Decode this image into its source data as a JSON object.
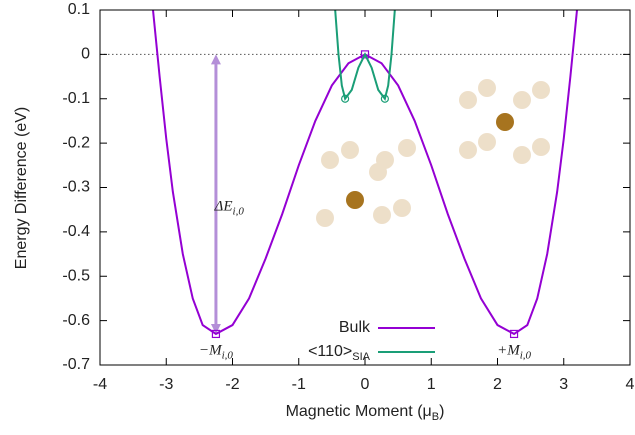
{
  "chart_data": {
    "type": "line",
    "ylabel": "Energy Difference (eV)",
    "xlabel_parts": [
      "Magnetic Moment (μ",
      "B",
      ")"
    ],
    "xlim": [
      -4,
      4
    ],
    "xticks": [
      -4,
      -3,
      -2,
      -1,
      0,
      1,
      2,
      3,
      4
    ],
    "ylim": [
      -0.7,
      0.1
    ],
    "yticks": [
      0.1,
      0,
      -0.1,
      -0.2,
      -0.3,
      -0.4,
      -0.5,
      -0.6,
      -0.7
    ],
    "hline": 0,
    "series": [
      {
        "name": "Bulk",
        "color": "#9400d3",
        "x": [
          -3.2,
          -3.1,
          -3.0,
          -2.9,
          -2.75,
          -2.6,
          -2.45,
          -2.25,
          -2.0,
          -1.75,
          -1.5,
          -1.25,
          -1.0,
          -0.75,
          -0.5,
          -0.25,
          0,
          0.25,
          0.5,
          0.75,
          1.0,
          1.25,
          1.5,
          1.75,
          2.0,
          2.25,
          2.45,
          2.6,
          2.75,
          2.9,
          3.0,
          3.1,
          3.2
        ],
        "values": [
          0.1,
          -0.05,
          -0.19,
          -0.31,
          -0.45,
          -0.55,
          -0.61,
          -0.63,
          -0.61,
          -0.55,
          -0.46,
          -0.36,
          -0.25,
          -0.15,
          -0.07,
          -0.02,
          0,
          -0.02,
          -0.07,
          -0.15,
          -0.25,
          -0.36,
          -0.46,
          -0.55,
          -0.61,
          -0.63,
          -0.61,
          -0.55,
          -0.45,
          -0.31,
          -0.19,
          -0.05,
          0.1
        ],
        "points_x": [
          -2.25,
          0,
          2.25
        ],
        "points_y": [
          -0.63,
          0,
          -0.63
        ]
      },
      {
        "name": "<110>",
        "name_sub": "SIA",
        "color": "#1a9e77",
        "x": [
          -0.45,
          -0.4,
          -0.35,
          -0.3,
          -0.2,
          -0.1,
          0,
          0.1,
          0.2,
          0.3,
          0.35,
          0.4,
          0.45
        ],
        "values": [
          0.1,
          0.0,
          -0.07,
          -0.1,
          -0.08,
          -0.03,
          0,
          -0.03,
          -0.08,
          -0.1,
          -0.07,
          0.0,
          0.1
        ],
        "points_x": [
          -0.3,
          0.3
        ],
        "points_y": [
          -0.1,
          -0.1
        ]
      }
    ],
    "arrow": {
      "x": -2.25,
      "y": [
        0,
        -0.63
      ]
    },
    "annotations": [
      {
        "main": "ΔE",
        "sub": "i,0",
        "x": -2.05,
        "y": -0.345
      },
      {
        "main": "−M",
        "sub": "i,0",
        "x": -2.25,
        "y": -0.67
      },
      {
        "main": "+M",
        "sub": "i,0",
        "x": 2.25,
        "y": -0.67
      }
    ]
  }
}
